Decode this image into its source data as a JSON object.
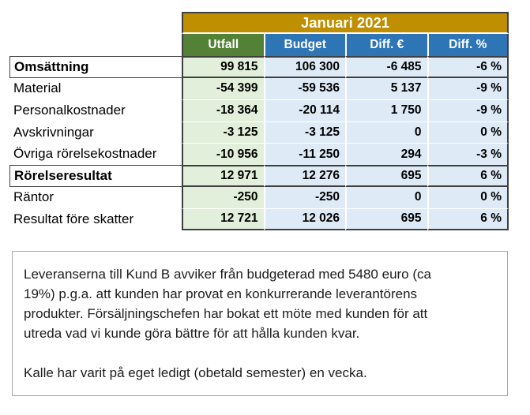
{
  "table": {
    "month_header": "Januari 2021",
    "columns": {
      "utfall": "Utfall",
      "budget": "Budget",
      "diff_eur": "Diff. €",
      "diff_pct": "Diff. %"
    },
    "rows": [
      {
        "label": "Omsättning",
        "utfall": "99 815",
        "budget": "106 300",
        "diff_eur": "-6 485",
        "diff_pct": "-6 %"
      },
      {
        "label": "Material",
        "utfall": "-54 399",
        "budget": "-59 536",
        "diff_eur": "5 137",
        "diff_pct": "-9 %"
      },
      {
        "label": "Personalkostnader",
        "utfall": "-18 364",
        "budget": "-20 114",
        "diff_eur": "1 750",
        "diff_pct": "-9 %"
      },
      {
        "label": "Avskrivningar",
        "utfall": "-3 125",
        "budget": "-3 125",
        "diff_eur": "0",
        "diff_pct": "0 %"
      },
      {
        "label": "Övriga rörelsekostnader",
        "utfall": "-10 956",
        "budget": "-11 250",
        "diff_eur": "294",
        "diff_pct": "-3 %"
      },
      {
        "label": "Rörelseresultat",
        "utfall": "12 971",
        "budget": "12 276",
        "diff_eur": "695",
        "diff_pct": "6 %"
      },
      {
        "label": "Räntor",
        "utfall": "-250",
        "budget": "-250",
        "diff_eur": "0",
        "diff_pct": "0 %"
      },
      {
        "label": "Resultat före skatter",
        "utfall": "12 721",
        "budget": "12 026",
        "diff_eur": "695",
        "diff_pct": "6 %"
      }
    ]
  },
  "notes": {
    "paragraph1": "Leveranserna till Kund B avviker från budgeterad med 5480 euro (ca\n19%) p.g.a. att kunden har provat en konkurrerande leverantörens\nprodukter. Försäljningschefen har bokat ett möte med kunden för att\nutreda vad vi kunde göra bättre för att hålla kunden kvar.",
    "paragraph2": "Kalle har varit på eget ledigt (obetald semester) en vecka."
  },
  "colors": {
    "month_header_bg": "#BF8F00",
    "utfall_header_bg": "#538135",
    "other_header_bg": "#2E75B6",
    "utfall_cell_bg": "#E2EFDA",
    "other_cell_bg": "#DEEBF7",
    "table_border": "#3f3f3f",
    "notes_border": "#a6a6a6"
  }
}
